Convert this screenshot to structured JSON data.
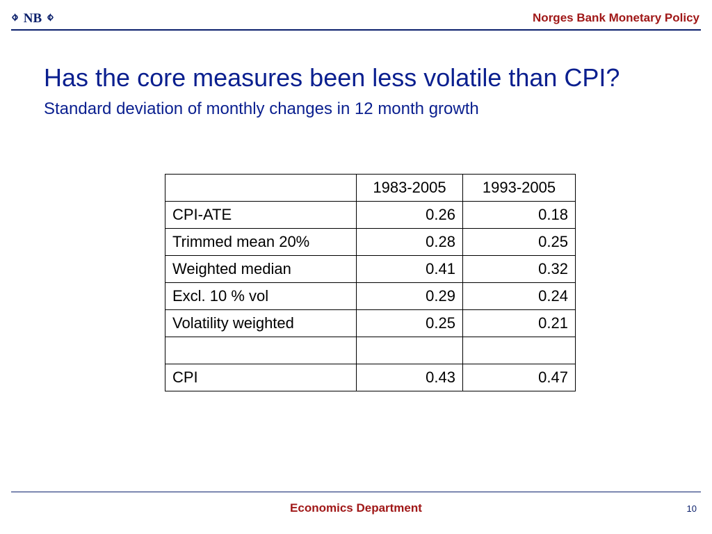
{
  "logo": {
    "text": "NB",
    "icon": "norges-bank-logo"
  },
  "header": {
    "title": "Norges Bank Monetary Policy"
  },
  "slide": {
    "title": "Has the core measures been less volatile than CPI?",
    "subtitle": "Standard deviation of monthly changes in 12 month growth"
  },
  "table": {
    "columns": [
      "",
      "1983-2005",
      "1993-2005"
    ],
    "rows": [
      [
        "CPI-ATE",
        "0.26",
        "0.18"
      ],
      [
        "Trimmed mean 20%",
        "0.28",
        "0.25"
      ],
      [
        "Weighted median",
        "0.41",
        "0.32"
      ],
      [
        "Excl. 10 % vol",
        "0.29",
        "0.24"
      ],
      [
        "Volatility weighted",
        "0.25",
        "0.21"
      ],
      [
        "",
        "",
        ""
      ],
      [
        "CPI",
        "0.43",
        "0.47"
      ]
    ]
  },
  "footer": {
    "department": "Economics Department",
    "page_number": "10"
  },
  "colors": {
    "brand_navy": "#0a1f6b",
    "title_blue": "#0a1f8f",
    "accent_red": "#a01818"
  }
}
